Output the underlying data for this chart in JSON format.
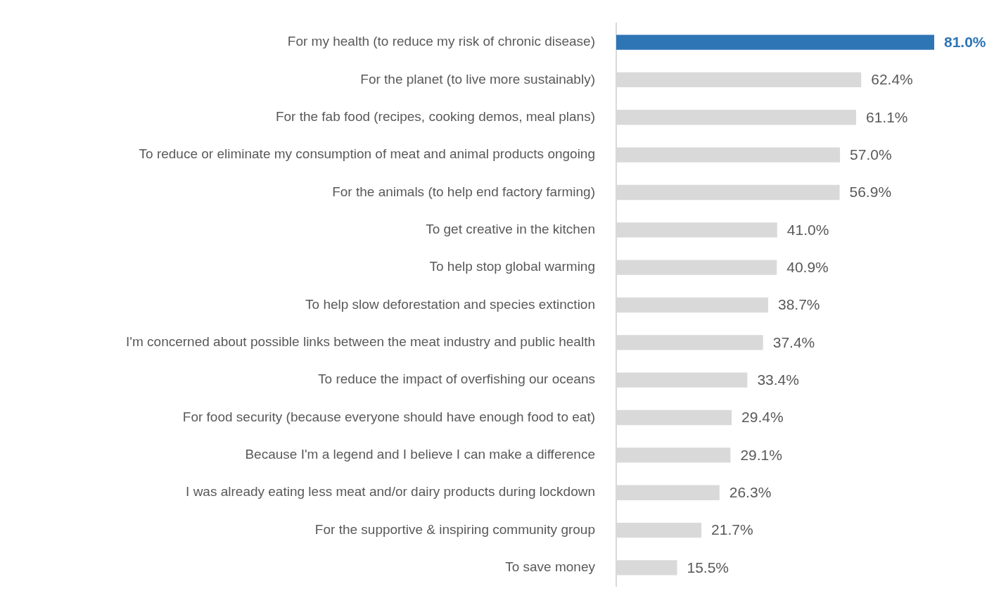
{
  "chart_data": {
    "type": "bar",
    "orientation": "horizontal",
    "categories": [
      "For my health (to reduce my risk of chronic disease)",
      "For the planet (to live more sustainably)",
      "For the fab food (recipes, cooking demos, meal plans)",
      "To reduce or eliminate my consumption of meat and animal products ongoing",
      "For the animals (to help end factory farming)",
      "To get creative in the kitchen",
      "To help stop global warming",
      "To help slow deforestation and species extinction",
      "I'm concerned about possible links between the meat industry and public health",
      "To reduce the impact of overfishing our oceans",
      "For food security (because everyone should have enough food to eat)",
      "Because I'm a legend and I believe I can make a difference",
      "I was already eating less meat and/or dairy products during lockdown",
      "For the supportive & inspiring community group",
      "To save money"
    ],
    "values": [
      81.0,
      62.4,
      61.1,
      57.0,
      56.9,
      41.0,
      40.9,
      38.7,
      37.4,
      33.4,
      29.4,
      29.1,
      26.3,
      21.7,
      15.5
    ],
    "colors": [
      "#2e75b6",
      "#d9d9d9",
      "#d9d9d9",
      "#d9d9d9",
      "#d9d9d9",
      "#d9d9d9",
      "#d9d9d9",
      "#d9d9d9",
      "#d9d9d9",
      "#d9d9d9",
      "#d9d9d9",
      "#d9d9d9",
      "#d9d9d9",
      "#d9d9d9",
      "#d9d9d9"
    ],
    "value_labels": [
      "81.0%",
      "62.4%",
      "61.1%",
      "57.0%",
      "56.9%",
      "41.0%",
      "40.9%",
      "38.7%",
      "37.4%",
      "33.4%",
      "29.4%",
      "29.1%",
      "26.3%",
      "21.7%",
      "15.5%"
    ],
    "legend": false
  }
}
